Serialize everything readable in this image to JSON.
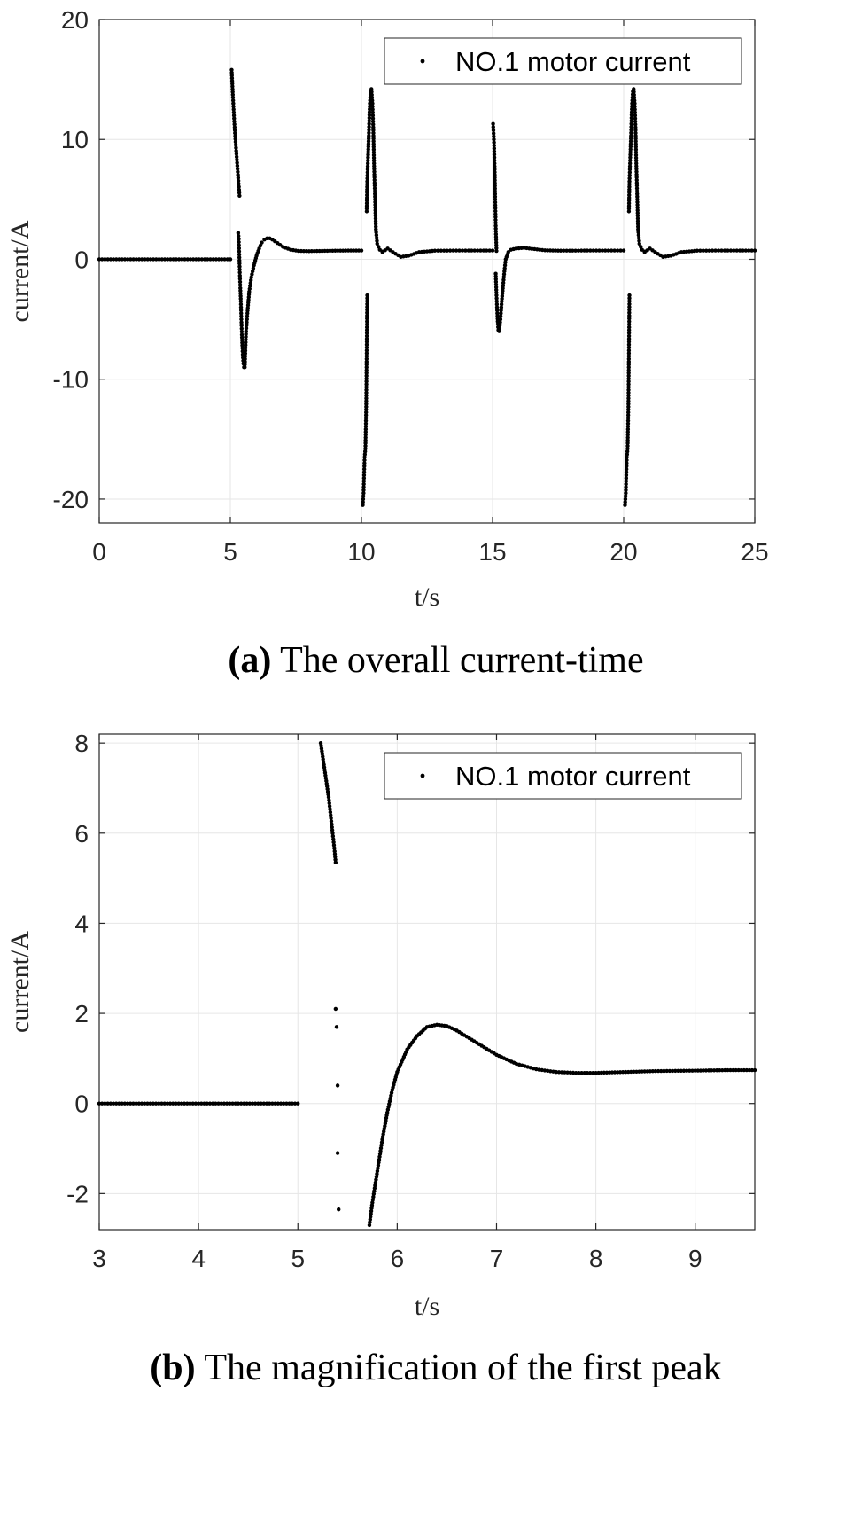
{
  "chart_data": [
    {
      "type": "scatter",
      "caption_prefix": "(a)",
      "caption_text": "The overall current-time",
      "xlabel": "t/s",
      "ylabel": "current/A",
      "xlim": [
        0,
        25
      ],
      "ylim": [
        -22,
        20
      ],
      "xticks": [
        0,
        5,
        10,
        15,
        20,
        25
      ],
      "yticks": [
        -20,
        -10,
        0,
        10,
        20
      ],
      "grid": true,
      "legend": "top-right",
      "series": [
        {
          "name": "NO.1 motor current",
          "marker": "dot",
          "color": "#000000",
          "segments": [
            [
              [
                0,
                0
              ],
              [
                5,
                0
              ]
            ],
            [
              [
                5.05,
                15.8
              ],
              [
                5.1,
                13.5
              ],
              [
                5.15,
                11.5
              ],
              [
                5.2,
                9.8
              ],
              [
                5.25,
                8.3
              ],
              [
                5.3,
                6.8
              ],
              [
                5.35,
                5.3
              ]
            ],
            [
              [
                5.3,
                2.2
              ],
              [
                5.32,
                1.7
              ],
              [
                5.34,
                0.4
              ],
              [
                5.36,
                -1.1
              ],
              [
                5.38,
                -2.4
              ],
              [
                5.4,
                -3.5
              ],
              [
                5.42,
                -5.0
              ],
              [
                5.44,
                -6.3
              ],
              [
                5.46,
                -7.4
              ],
              [
                5.48,
                -8.2
              ],
              [
                5.5,
                -8.7
              ],
              [
                5.52,
                -9.0
              ]
            ],
            [
              [
                5.55,
                -9.0
              ],
              [
                5.6,
                -6.0
              ],
              [
                5.65,
                -4.5
              ],
              [
                5.72,
                -2.7
              ],
              [
                5.8,
                -1.5
              ],
              [
                5.9,
                -0.5
              ],
              [
                6.0,
                0.3
              ],
              [
                6.1,
                0.9
              ],
              [
                6.2,
                1.4
              ],
              [
                6.3,
                1.65
              ],
              [
                6.4,
                1.75
              ],
              [
                6.5,
                1.75
              ],
              [
                6.6,
                1.65
              ],
              [
                6.8,
                1.35
              ],
              [
                7.0,
                1.05
              ],
              [
                7.3,
                0.8
              ],
              [
                7.6,
                0.7
              ],
              [
                8.0,
                0.68
              ],
              [
                8.5,
                0.7
              ],
              [
                9.0,
                0.72
              ],
              [
                9.5,
                0.73
              ],
              [
                10.0,
                0.73
              ]
            ],
            [
              [
                10.05,
                -20.5
              ],
              [
                10.08,
                -19.5
              ],
              [
                10.1,
                -18.0
              ],
              [
                10.12,
                -16.5
              ],
              [
                10.15,
                -15.8
              ],
              [
                10.18,
                -12.3
              ],
              [
                10.2,
                -7.6
              ],
              [
                10.22,
                -3.0
              ]
            ],
            [
              [
                10.2,
                4.0
              ],
              [
                10.22,
                6.5
              ],
              [
                10.25,
                8.5
              ],
              [
                10.28,
                10.3
              ],
              [
                10.3,
                11.8
              ],
              [
                10.32,
                13.0
              ],
              [
                10.35,
                14.0
              ],
              [
                10.38,
                14.2
              ],
              [
                10.42,
                13.0
              ],
              [
                10.45,
                11.0
              ],
              [
                10.48,
                8.0
              ],
              [
                10.52,
                5.0
              ],
              [
                10.55,
                2.5
              ],
              [
                10.6,
                1.3
              ],
              [
                10.7,
                0.8
              ],
              [
                10.8,
                0.65
              ]
            ],
            [
              [
                10.8,
                0.6
              ],
              [
                11.0,
                0.9
              ],
              [
                11.2,
                0.6
              ],
              [
                11.5,
                0.2
              ],
              [
                11.8,
                0.3
              ],
              [
                12.2,
                0.6
              ],
              [
                12.8,
                0.72
              ],
              [
                13.5,
                0.73
              ],
              [
                14.2,
                0.73
              ],
              [
                15.0,
                0.73
              ]
            ],
            [
              [
                15.02,
                11.3
              ],
              [
                15.04,
                10.5
              ],
              [
                15.06,
                9.5
              ],
              [
                15.08,
                7.5
              ],
              [
                15.1,
                5.0
              ],
              [
                15.12,
                2.8
              ],
              [
                15.15,
                0.7
              ]
            ],
            [
              [
                15.12,
                -1.2
              ],
              [
                15.15,
                -3.0
              ],
              [
                15.18,
                -4.5
              ],
              [
                15.2,
                -5.4
              ],
              [
                15.22,
                -5.9
              ],
              [
                15.25,
                -6.0
              ],
              [
                15.3,
                -5.0
              ],
              [
                15.35,
                -3.5
              ],
              [
                15.4,
                -2.2
              ],
              [
                15.45,
                -1.0
              ],
              [
                15.5,
                0.0
              ],
              [
                15.6,
                0.6
              ],
              [
                15.7,
                0.8
              ],
              [
                15.9,
                0.9
              ],
              [
                16.2,
                0.95
              ],
              [
                16.6,
                0.85
              ],
              [
                17.0,
                0.75
              ],
              [
                17.6,
                0.72
              ],
              [
                18.5,
                0.73
              ],
              [
                19.3,
                0.73
              ],
              [
                20.0,
                0.73
              ]
            ],
            [
              [
                20.05,
                -20.5
              ],
              [
                20.08,
                -19.5
              ],
              [
                20.1,
                -18.0
              ],
              [
                20.12,
                -16.5
              ],
              [
                20.15,
                -15.8
              ],
              [
                20.18,
                -12.3
              ],
              [
                20.2,
                -7.6
              ],
              [
                20.22,
                -3.0
              ]
            ],
            [
              [
                20.2,
                4.0
              ],
              [
                20.22,
                6.5
              ],
              [
                20.25,
                8.5
              ],
              [
                20.28,
                10.3
              ],
              [
                20.3,
                11.8
              ],
              [
                20.32,
                13.0
              ],
              [
                20.35,
                14.0
              ],
              [
                20.38,
                14.2
              ],
              [
                20.42,
                13.0
              ],
              [
                20.45,
                11.0
              ],
              [
                20.48,
                8.0
              ],
              [
                20.52,
                5.0
              ],
              [
                20.55,
                2.5
              ],
              [
                20.6,
                1.3
              ],
              [
                20.7,
                0.8
              ],
              [
                20.8,
                0.65
              ]
            ],
            [
              [
                20.8,
                0.6
              ],
              [
                21.0,
                0.9
              ],
              [
                21.2,
                0.6
              ],
              [
                21.5,
                0.2
              ],
              [
                21.8,
                0.3
              ],
              [
                22.2,
                0.6
              ],
              [
                22.8,
                0.72
              ],
              [
                23.5,
                0.73
              ],
              [
                24.2,
                0.73
              ],
              [
                25.0,
                0.73
              ]
            ]
          ]
        }
      ]
    },
    {
      "type": "scatter",
      "caption_prefix": "(b)",
      "caption_text": "The magnification of the first peak",
      "xlabel": "t/s",
      "ylabel": "current/A",
      "xlim": [
        3,
        9.6
      ],
      "ylim": [
        -2.8,
        8.2
      ],
      "xticks": [
        3,
        4,
        5,
        6,
        7,
        8,
        9
      ],
      "yticks": [
        -2,
        0,
        2,
        4,
        6,
        8
      ],
      "grid": true,
      "legend": "top-right",
      "series": [
        {
          "name": "NO.1 motor current",
          "marker": "dot",
          "color": "#000000",
          "segments": [
            [
              [
                3,
                0
              ],
              [
                5,
                0
              ]
            ],
            [
              [
                5.23,
                8.0
              ],
              [
                5.25,
                7.7
              ],
              [
                5.27,
                7.4
              ],
              [
                5.29,
                7.1
              ],
              [
                5.31,
                6.8
              ],
              [
                5.33,
                6.4
              ],
              [
                5.35,
                6.0
              ],
              [
                5.37,
                5.6
              ],
              [
                5.38,
                5.35
              ]
            ],
            [
              [
                5.38,
                2.1
              ]
            ],
            [
              [
                5.39,
                1.7
              ]
            ],
            [
              [
                5.4,
                0.4
              ]
            ],
            [
              [
                5.4,
                -1.1
              ]
            ],
            [
              [
                5.41,
                -2.35
              ]
            ],
            [
              [
                5.72,
                -2.7
              ],
              [
                5.75,
                -2.2
              ],
              [
                5.8,
                -1.5
              ],
              [
                5.85,
                -0.8
              ],
              [
                5.9,
                -0.2
              ],
              [
                5.95,
                0.3
              ],
              [
                6.0,
                0.7
              ],
              [
                6.1,
                1.2
              ],
              [
                6.2,
                1.5
              ],
              [
                6.3,
                1.7
              ],
              [
                6.4,
                1.75
              ],
              [
                6.5,
                1.72
              ],
              [
                6.6,
                1.62
              ],
              [
                6.8,
                1.35
              ],
              [
                7.0,
                1.08
              ],
              [
                7.2,
                0.88
              ],
              [
                7.4,
                0.76
              ],
              [
                7.6,
                0.7
              ],
              [
                7.8,
                0.68
              ],
              [
                8.0,
                0.68
              ],
              [
                8.3,
                0.7
              ],
              [
                8.6,
                0.72
              ],
              [
                9.0,
                0.73
              ],
              [
                9.3,
                0.74
              ],
              [
                9.6,
                0.74
              ]
            ]
          ]
        }
      ]
    }
  ]
}
